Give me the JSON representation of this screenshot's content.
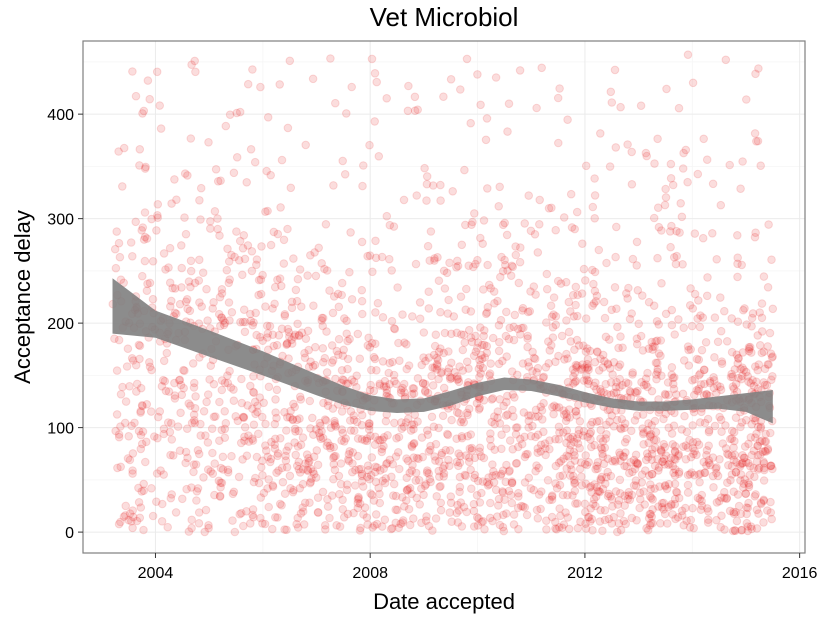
{
  "chart_data": {
    "type": "scatter",
    "title": "Vet Microbiol",
    "xlabel": "Date accepted",
    "ylabel": "Acceptance delay",
    "xlim": [
      2002.65,
      2016.1
    ],
    "ylim": [
      -20,
      470
    ],
    "x_ticks": [
      2004,
      2008,
      2012,
      2016
    ],
    "y_ticks": [
      0,
      100,
      200,
      300,
      400
    ],
    "grid": true,
    "point_color": "#E41A1C",
    "point_alpha": 0.15,
    "x_range_of_points": [
      2003.2,
      2015.5
    ],
    "approx_point_count": 2600,
    "smooth": {
      "color": "#7f7f7f",
      "x": [
        2003.2,
        2004,
        2005,
        2006,
        2007,
        2007.5,
        2008,
        2008.5,
        2009,
        2009.5,
        2010,
        2010.5,
        2011,
        2011.5,
        2012,
        2012.5,
        2013,
        2013.5,
        2014,
        2014.5,
        2015,
        2015.5
      ],
      "upper": [
        243,
        212,
        193,
        173,
        151,
        140,
        131,
        127,
        128,
        135,
        143,
        148,
        146,
        141,
        134,
        128,
        125,
        125,
        127,
        130,
        133,
        136
      ],
      "lower": [
        190,
        186,
        168,
        150,
        131,
        122,
        116,
        114,
        115,
        121,
        130,
        136,
        135,
        130,
        124,
        119,
        116,
        116,
        117,
        118,
        115,
        104
      ]
    }
  }
}
